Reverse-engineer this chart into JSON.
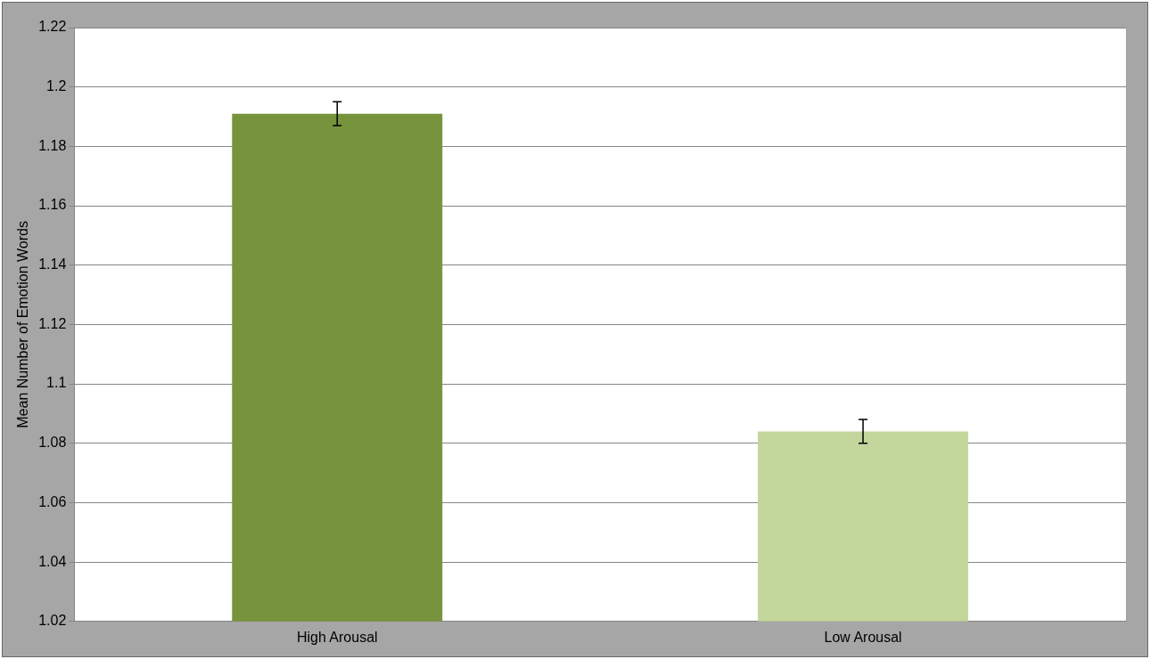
{
  "chart_data": {
    "type": "bar",
    "ylabel": "Mean Number of Emotion Words",
    "categories": [
      "High Arousal",
      "Low Arousal"
    ],
    "values": [
      1.191,
      1.084
    ],
    "errors": [
      0.004,
      0.004
    ],
    "colors": [
      "#77933c",
      "#c3d69b"
    ],
    "ylim": [
      1.02,
      1.22
    ],
    "yticks": [
      1.02,
      1.04,
      1.06,
      1.08,
      1.1,
      1.12,
      1.14,
      1.16,
      1.18,
      1.2,
      1.22
    ],
    "grid": "y",
    "legend": false
  }
}
